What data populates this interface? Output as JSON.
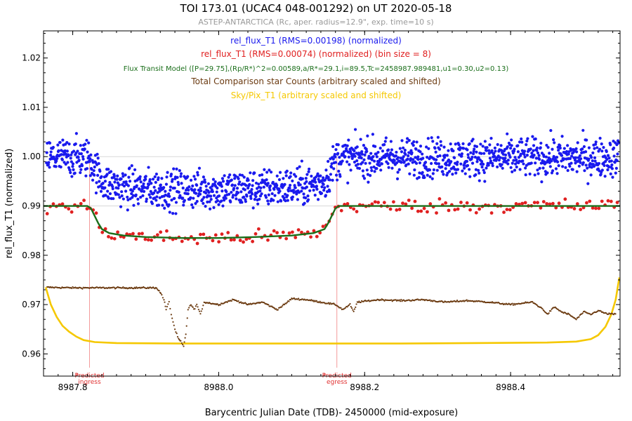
{
  "chart_data": {
    "type": "scatter",
    "title": "TOI 173.01 (UCAC4 048-001292)  on UT 2020-05-18",
    "subtitle": "ASTEP-ANTARCTICA (Rc, aper. radius=12.9\", exp. time=10 s)",
    "xlabel": "Barycentric Julian Date (TDB)- 2450000 (mid-exposure)",
    "ylabel": "rel_flux_T1 (normalized)",
    "xlim": [
      8987.76,
      8988.55
    ],
    "ylim": [
      0.9555,
      1.0255
    ],
    "x_ticks": [
      {
        "value": 8987.8,
        "label": "8987.8"
      },
      {
        "value": 8988.0,
        "label": "8988.0"
      },
      {
        "value": 8988.2,
        "label": "8988.2"
      },
      {
        "value": 8988.4,
        "label": "8988.4"
      }
    ],
    "y_ticks": [
      {
        "value": 0.96,
        "label": "0.96"
      },
      {
        "value": 0.97,
        "label": "0.97"
      },
      {
        "value": 0.98,
        "label": "0.98"
      },
      {
        "value": 0.99,
        "label": "0.99"
      },
      {
        "value": 1.0,
        "label": "1.00"
      },
      {
        "value": 1.01,
        "label": "1.01"
      },
      {
        "value": 1.02,
        "label": "1.02"
      }
    ],
    "grid_y": [
      0.99,
      1.0
    ],
    "legend": [
      {
        "text": "rel_flux_T1 (RMS=0.00198) (normalized)",
        "color": "#1a1aee"
      },
      {
        "text": "rel_flux_T1 (RMS=0.00074) (normalized) (bin size = 8)",
        "color": "#e02020"
      },
      {
        "text": "Flux Transit Model ([P=29.75],(Rp/R*)^2=0.00589,a/R*=29.1,i=89.5,Tc=2458987.989481,u1=0.30,u2=0.13)",
        "color": "#1a6e1a"
      },
      {
        "text": "Total Comparison star Counts (arbitrary scaled and shifted)",
        "color": "#6b3a10"
      },
      {
        "text": "Sky/Pix_T1 (arbitrary scaled and shifted)",
        "color": "#f5c800"
      }
    ],
    "predicted_ingress": {
      "x": 8987.823,
      "label": [
        "Predicted",
        "ingress"
      ]
    },
    "predicted_egress": {
      "x": 8988.162,
      "label": [
        "Predicted",
        "egress"
      ]
    },
    "model": {
      "name": "Flux Transit Model",
      "color": "#1a6e1a",
      "points": [
        [
          8987.76,
          0.99
        ],
        [
          8987.82,
          0.99
        ],
        [
          8987.825,
          0.9895
        ],
        [
          8987.83,
          0.988
        ],
        [
          8987.835,
          0.9865
        ],
        [
          8987.84,
          0.9853
        ],
        [
          8987.85,
          0.9845
        ],
        [
          8987.87,
          0.984
        ],
        [
          8987.9,
          0.9837
        ],
        [
          8987.95,
          0.9835
        ],
        [
          8988.0,
          0.9835
        ],
        [
          8988.05,
          0.9837
        ],
        [
          8988.1,
          0.984
        ],
        [
          8988.13,
          0.9845
        ],
        [
          8988.145,
          0.9853
        ],
        [
          8988.15,
          0.9865
        ],
        [
          8988.155,
          0.988
        ],
        [
          8988.16,
          0.9895
        ],
        [
          8988.165,
          0.99
        ],
        [
          8988.55,
          0.99
        ]
      ]
    },
    "series": [
      {
        "name": "rel_flux_T1 (RMS=0.00198) (normalized)",
        "color": "#1a1aee",
        "generator": {
          "model_offset": 0.0098,
          "scatter": 0.00198,
          "step": 0.00052
        }
      },
      {
        "name": "rel_flux_T1 (RMS=0.00074) (normalized) (bin size = 8)",
        "color": "#e02020",
        "generator": {
          "model_offset": 0.0,
          "scatter": 0.00074,
          "step": 0.0042
        }
      },
      {
        "name": "Total Comparison star Counts (arbitrary scaled and shifted)",
        "color": "#6b3a10",
        "points": [
          [
            8987.765,
            0.9735
          ],
          [
            8987.8,
            0.9734
          ],
          [
            8987.84,
            0.9734
          ],
          [
            8987.88,
            0.9734
          ],
          [
            8987.915,
            0.9734
          ],
          [
            8987.922,
            0.972
          ],
          [
            8987.925,
            0.971
          ],
          [
            8987.928,
            0.969
          ],
          [
            8987.932,
            0.9705
          ],
          [
            8987.935,
            0.968
          ],
          [
            8987.94,
            0.965
          ],
          [
            8987.945,
            0.963
          ],
          [
            8987.948,
            0.9625
          ],
          [
            8987.952,
            0.9615
          ],
          [
            8987.955,
            0.964
          ],
          [
            8987.958,
            0.969
          ],
          [
            8987.962,
            0.97
          ],
          [
            8987.966,
            0.969
          ],
          [
            8987.97,
            0.97
          ],
          [
            8987.975,
            0.968
          ],
          [
            8987.98,
            0.9705
          ],
          [
            8988.0,
            0.97
          ],
          [
            8988.02,
            0.971
          ],
          [
            8988.04,
            0.97
          ],
          [
            8988.06,
            0.9705
          ],
          [
            8988.08,
            0.969
          ],
          [
            8988.09,
            0.97
          ],
          [
            8988.1,
            0.9712
          ],
          [
            8988.12,
            0.971
          ],
          [
            8988.14,
            0.9705
          ],
          [
            8988.16,
            0.97
          ],
          [
            8988.17,
            0.969
          ],
          [
            8988.18,
            0.97
          ],
          [
            8988.185,
            0.9685
          ],
          [
            8988.19,
            0.9705
          ],
          [
            8988.22,
            0.971
          ],
          [
            8988.25,
            0.9708
          ],
          [
            8988.28,
            0.971
          ],
          [
            8988.31,
            0.9705
          ],
          [
            8988.34,
            0.9708
          ],
          [
            8988.37,
            0.9705
          ],
          [
            8988.4,
            0.97
          ],
          [
            8988.43,
            0.9705
          ],
          [
            8988.445,
            0.969
          ],
          [
            8988.45,
            0.968
          ],
          [
            8988.46,
            0.9695
          ],
          [
            8988.47,
            0.9685
          ],
          [
            8988.48,
            0.968
          ],
          [
            8988.49,
            0.967
          ],
          [
            8988.5,
            0.9685
          ],
          [
            8988.51,
            0.968
          ],
          [
            8988.52,
            0.9688
          ],
          [
            8988.53,
            0.9682
          ],
          [
            8988.545,
            0.968
          ]
        ]
      },
      {
        "name": "Sky/Pix_T1 (arbitrary scaled and shifted)",
        "color": "#f5c800",
        "points": [
          [
            8987.763,
            0.9735
          ],
          [
            8987.77,
            0.97
          ],
          [
            8987.778,
            0.9675
          ],
          [
            8987.786,
            0.9657
          ],
          [
            8987.795,
            0.9645
          ],
          [
            8987.805,
            0.9635
          ],
          [
            8987.815,
            0.9628
          ],
          [
            8987.83,
            0.9624
          ],
          [
            8987.86,
            0.9622
          ],
          [
            8987.95,
            0.9621
          ],
          [
            8988.05,
            0.9621
          ],
          [
            8988.15,
            0.9621
          ],
          [
            8988.25,
            0.9621
          ],
          [
            8988.35,
            0.9622
          ],
          [
            8988.45,
            0.9623
          ],
          [
            8988.49,
            0.9625
          ],
          [
            8988.51,
            0.963
          ],
          [
            8988.52,
            0.9638
          ],
          [
            8988.53,
            0.9655
          ],
          [
            8988.538,
            0.968
          ],
          [
            8988.544,
            0.971
          ],
          [
            8988.549,
            0.9755
          ]
        ]
      }
    ]
  }
}
